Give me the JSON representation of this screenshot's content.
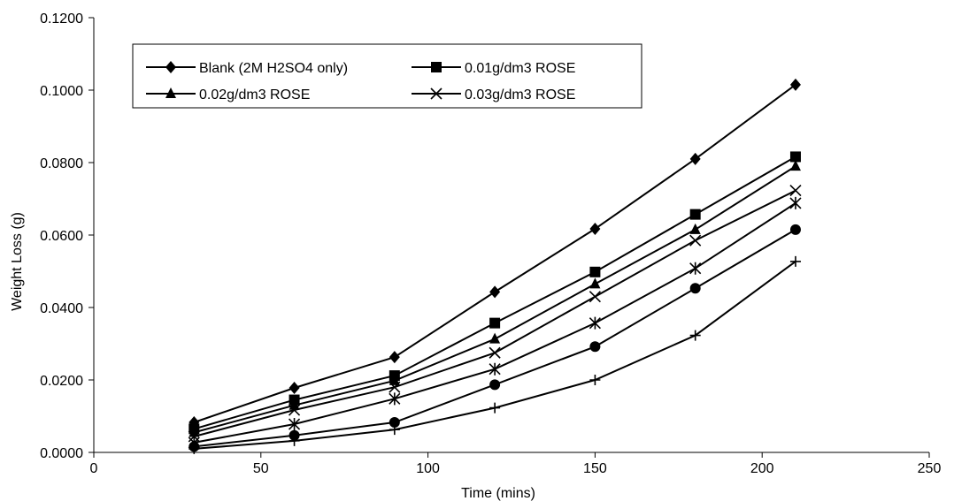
{
  "chart_data": {
    "type": "line",
    "title": "",
    "xlabel": "Time (mins)",
    "ylabel": "Weight Loss (g)",
    "xlim": [
      0,
      250
    ],
    "ylim": [
      0,
      0.12
    ],
    "x_ticks": [
      "0",
      "50",
      "100",
      "150",
      "200",
      "250"
    ],
    "y_ticks": [
      "0.0000",
      "0.0200",
      "0.0400",
      "0.0600",
      "0.0800",
      "0.1000",
      "0.1200"
    ],
    "grid": false,
    "legend_position": "top-left",
    "x": [
      30,
      60,
      90,
      120,
      150,
      180,
      210
    ],
    "series": [
      {
        "name": "Blank  (2M H2SO4 only)",
        "marker": "diamond",
        "values": [
          0.0083,
          0.0178,
          0.0263,
          0.0443,
          0.0617,
          0.081,
          0.1015
        ]
      },
      {
        "name": "0.01g/dm3 ROSE",
        "marker": "square",
        "values": [
          0.0065,
          0.0145,
          0.0212,
          0.0357,
          0.0498,
          0.0657,
          0.0816
        ]
      },
      {
        "name": "0.02g/dm3 ROSE",
        "marker": "triangle",
        "values": [
          0.0055,
          0.013,
          0.0198,
          0.0313,
          0.0465,
          0.0615,
          0.079
        ]
      },
      {
        "name": "0.03g/dm3 ROSE",
        "marker": "x",
        "values": [
          0.0044,
          0.0117,
          0.018,
          0.0275,
          0.043,
          0.0585,
          0.0723
        ]
      },
      {
        "name": "",
        "marker": "star",
        "values": [
          0.0027,
          0.0078,
          0.0148,
          0.023,
          0.0357,
          0.0508,
          0.0688
        ]
      },
      {
        "name": "",
        "marker": "circle",
        "values": [
          0.0016,
          0.0047,
          0.0083,
          0.0187,
          0.0292,
          0.0453,
          0.0615
        ]
      },
      {
        "name": "",
        "marker": "plus",
        "values": [
          0.001,
          0.0032,
          0.0063,
          0.0123,
          0.02,
          0.0323,
          0.0527
        ]
      }
    ],
    "colors": {
      "line": "#000000",
      "background": "#ffffff"
    }
  }
}
